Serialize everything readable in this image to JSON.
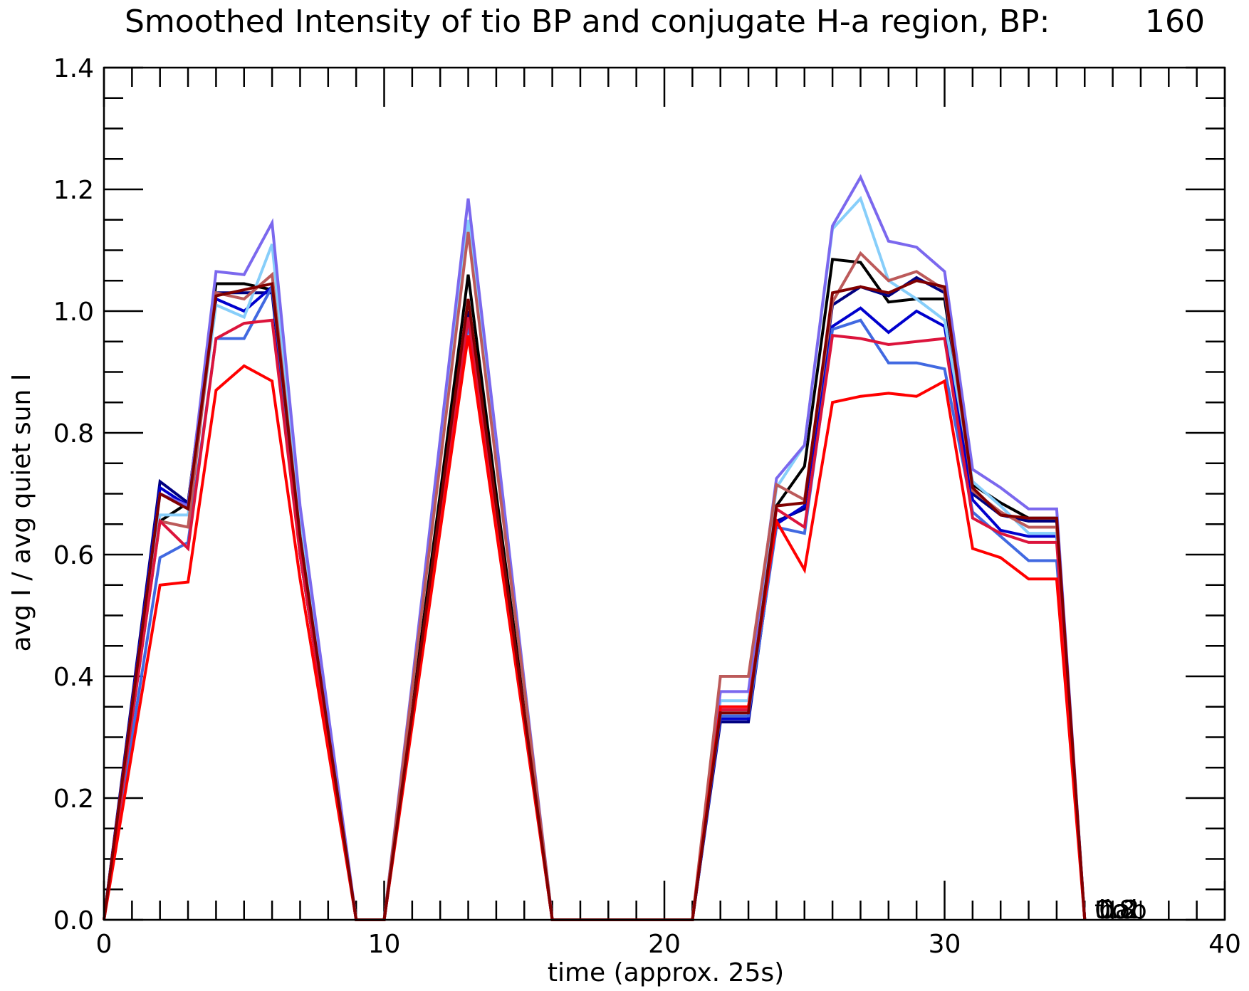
{
  "chart_data": {
    "type": "line",
    "title": "Smoothed Intensity of tio BP and conjugate H-a region, BP:",
    "title_number": "160",
    "xlabel": "time (approx. 25s)",
    "ylabel": "avg I / avg quiet sun I",
    "xlim": [
      0,
      40
    ],
    "ylim": [
      0,
      1.4
    ],
    "x_ticks": [
      0,
      10,
      20,
      30,
      40
    ],
    "x_tick_labels": [
      "0",
      "10",
      "20",
      "30",
      "40"
    ],
    "y_ticks": [
      0,
      0.2,
      0.4,
      0.6,
      0.8,
      1.0,
      1.2,
      1.4
    ],
    "y_tick_labels": [
      "0.0",
      "0.2",
      "0.4",
      "0.6",
      "0.8",
      "1.0",
      "1.2",
      "1.4"
    ],
    "grid": false,
    "corner_labels": [
      "tio",
      "hab",
      "0.8",
      "0.2"
    ],
    "x": [
      0,
      1,
      2,
      3,
      4,
      5,
      6,
      7,
      8,
      9,
      10,
      11,
      12,
      13,
      14,
      15,
      16,
      17,
      18,
      19,
      20,
      21,
      22,
      23,
      24,
      25,
      26,
      27,
      28,
      29,
      30,
      31,
      32,
      33,
      34,
      35
    ],
    "series": [
      {
        "color": "#000000",
        "values": [
          0,
          0.35,
          0.655,
          0.685,
          1.045,
          1.045,
          1.035,
          0.62,
          0.3,
          0,
          0,
          0.35,
          0.7,
          1.06,
          0.7,
          0.35,
          0,
          0,
          0,
          0,
          0,
          0,
          0.335,
          0.335,
          0.68,
          0.745,
          1.085,
          1.08,
          1.015,
          1.02,
          1.02,
          0.715,
          0.685,
          0.66,
          0.66,
          0
        ]
      },
      {
        "color": "#000080",
        "values": [
          0,
          0.36,
          0.72,
          0.685,
          1.03,
          1.03,
          1.03,
          0.6,
          0.3,
          0,
          0,
          0.33,
          0.67,
          1.0,
          0.67,
          0.33,
          0,
          0,
          0,
          0,
          0,
          0,
          0.325,
          0.325,
          0.655,
          0.675,
          1.01,
          1.04,
          1.025,
          1.055,
          1.03,
          0.7,
          0.665,
          0.655,
          0.655,
          0
        ]
      },
      {
        "color": "#0000cd",
        "values": [
          0,
          0.355,
          0.71,
          0.68,
          1.02,
          1.0,
          1.04,
          0.6,
          0.3,
          0,
          0,
          0.33,
          0.66,
          0.99,
          0.66,
          0.33,
          0,
          0,
          0,
          0,
          0,
          0,
          0.33,
          0.33,
          0.65,
          0.68,
          0.975,
          1.005,
          0.965,
          1.0,
          0.975,
          0.69,
          0.64,
          0.63,
          0.63,
          0
        ]
      },
      {
        "color": "#4169e1",
        "values": [
          0,
          0.3,
          0.595,
          0.62,
          0.955,
          0.955,
          1.04,
          0.62,
          0.3,
          0,
          0,
          0.33,
          0.66,
          0.98,
          0.66,
          0.33,
          0,
          0,
          0,
          0,
          0,
          0,
          0.335,
          0.335,
          0.645,
          0.635,
          0.97,
          0.985,
          0.915,
          0.915,
          0.905,
          0.67,
          0.63,
          0.59,
          0.59,
          0
        ]
      },
      {
        "color": "#87cefa",
        "values": [
          0,
          0.33,
          0.665,
          0.665,
          1.01,
          0.99,
          1.11,
          0.65,
          0.32,
          0,
          0,
          0.38,
          0.76,
          1.15,
          0.76,
          0.38,
          0,
          0,
          0,
          0,
          0,
          0,
          0.36,
          0.36,
          0.71,
          0.78,
          1.135,
          1.185,
          1.05,
          1.02,
          0.985,
          0.72,
          0.68,
          0.635,
          0.635,
          0
        ]
      },
      {
        "color": "#7b68ee",
        "values": [
          0,
          0.35,
          0.7,
          0.68,
          1.065,
          1.06,
          1.145,
          0.68,
          0.34,
          0,
          0,
          0.39,
          0.79,
          1.185,
          0.79,
          0.39,
          0,
          0,
          0,
          0,
          0,
          0,
          0.375,
          0.375,
          0.725,
          0.78,
          1.14,
          1.22,
          1.115,
          1.105,
          1.065,
          0.74,
          0.71,
          0.675,
          0.675,
          0
        ]
      },
      {
        "color": "#bc5a5a",
        "values": [
          0,
          0.33,
          0.655,
          0.645,
          1.03,
          1.02,
          1.06,
          0.63,
          0.31,
          0,
          0,
          0.38,
          0.75,
          1.13,
          0.75,
          0.38,
          0,
          0,
          0,
          0,
          0,
          0,
          0.4,
          0.4,
          0.715,
          0.69,
          1.015,
          1.095,
          1.05,
          1.065,
          1.035,
          0.705,
          0.67,
          0.645,
          0.645,
          0
        ]
      },
      {
        "color": "#dc143c",
        "values": [
          0,
          0.33,
          0.655,
          0.61,
          0.955,
          0.98,
          0.985,
          0.6,
          0.3,
          0,
          0,
          0.33,
          0.66,
          0.99,
          0.66,
          0.33,
          0,
          0,
          0,
          0,
          0,
          0,
          0.345,
          0.345,
          0.675,
          0.645,
          0.96,
          0.955,
          0.945,
          0.95,
          0.955,
          0.66,
          0.635,
          0.62,
          0.62,
          0
        ]
      },
      {
        "color": "#ff0000",
        "values": [
          0,
          0.275,
          0.55,
          0.555,
          0.87,
          0.91,
          0.885,
          0.56,
          0.28,
          0,
          0,
          0.32,
          0.64,
          0.96,
          0.64,
          0.32,
          0,
          0,
          0,
          0,
          0,
          0,
          0.35,
          0.35,
          0.655,
          0.575,
          0.85,
          0.86,
          0.865,
          0.86,
          0.885,
          0.61,
          0.595,
          0.56,
          0.56,
          0
        ]
      },
      {
        "color": "#800000",
        "values": [
          0,
          0.35,
          0.7,
          0.675,
          1.025,
          1.035,
          1.045,
          0.63,
          0.31,
          0,
          0,
          0.34,
          0.68,
          1.02,
          0.68,
          0.34,
          0,
          0,
          0,
          0,
          0,
          0,
          0.34,
          0.34,
          0.68,
          0.685,
          1.03,
          1.04,
          1.03,
          1.05,
          1.04,
          0.71,
          0.665,
          0.66,
          0.66,
          0
        ]
      }
    ]
  }
}
